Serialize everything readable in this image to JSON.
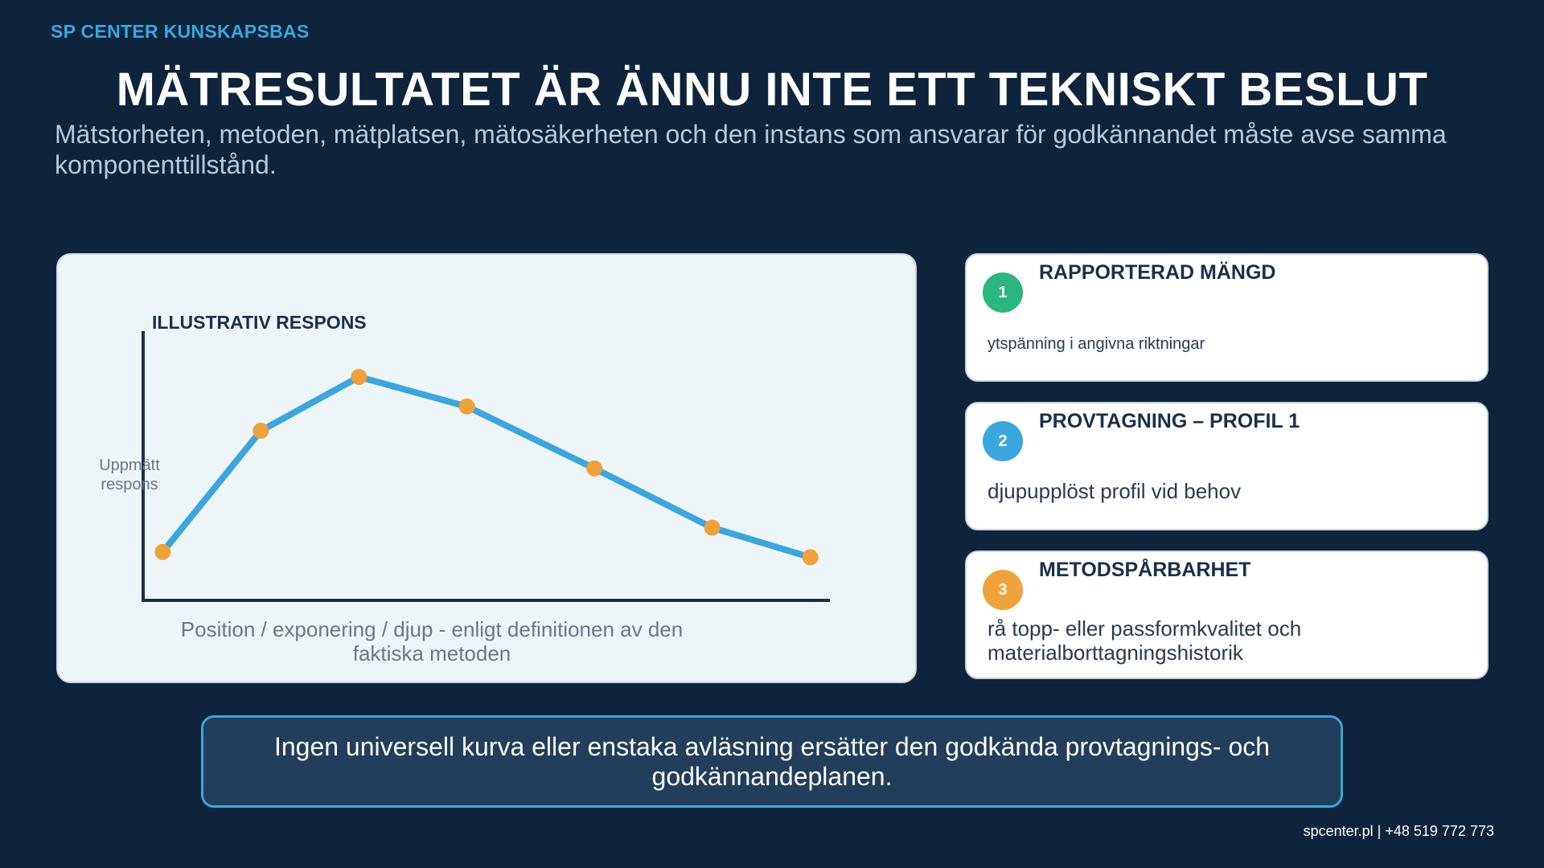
{
  "brand": "SP CENTER KUNSKAPSBAS",
  "title": "MÄTRESULTATET ÄR ÄNNU INTE ETT TEKNISKT BESLUT",
  "subtitle": "Mätstorheten, metoden, mätplatsen, mätosäkerheten och den instans som ansvarar för godkännandet måste avse samma komponenttillstånd.",
  "chart_data": {
    "type": "line",
    "title": "ILLUSTRATIV RESPONS",
    "ylabel": "Uppmätt respons",
    "xlabel": "Position / exponering / djup - enligt definitionen av den faktiska metoden",
    "x": [
      0.2,
      1.2,
      2.2,
      3.3,
      4.6,
      5.8,
      6.8
    ],
    "y": [
      0.18,
      0.63,
      0.83,
      0.72,
      0.49,
      0.27,
      0.16
    ],
    "xlim": [
      0,
      7
    ],
    "ylim": [
      0,
      1
    ],
    "ticks": "none",
    "grid": false,
    "legend": "none",
    "colors": {
      "line": "#3aa6e0",
      "point": "#f0a23a",
      "axis": "#1a2f4a"
    }
  },
  "cards": [
    {
      "number": "1",
      "title": "RAPPORTERAD MÄNGD",
      "description": "ytspänning i angivna riktningar",
      "color": "#2bb57f"
    },
    {
      "number": "2",
      "title": "PROVTAGNING – PROFIL 1",
      "description": "djupupplöst profil vid behov",
      "color": "#3aa6e0"
    },
    {
      "number": "3",
      "title": "METODSPÅRBARHET",
      "description": "rå topp- eller passformkvalitet och materialborttagningshistorik",
      "color": "#f0a23a"
    }
  ],
  "callout": "Ingen universell kurva eller enstaka avläsning ersätter den godkända provtagnings- och godkännandeplanen.",
  "footer": "spcenter.pl  |  +48 519 772 773"
}
